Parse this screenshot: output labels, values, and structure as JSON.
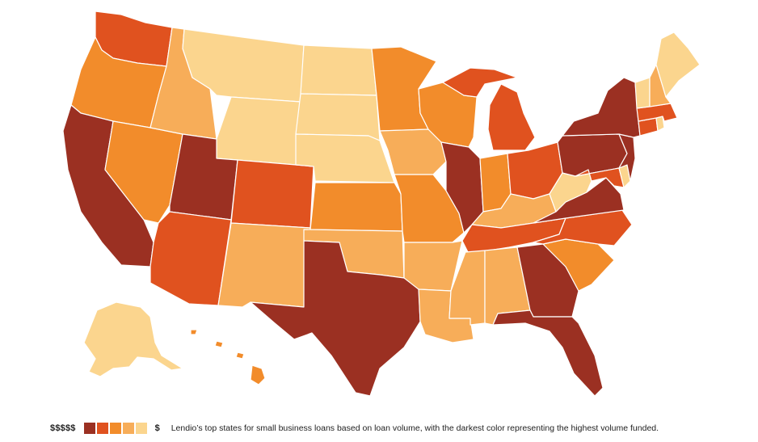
{
  "legend": {
    "high_label": "$$$$$",
    "low_label": "$",
    "caption": "Lendio’s top states for small business loans based on loan volume, with the darkest color representing the highest volume funded.",
    "scale_colors": [
      "#9b3022",
      "#e0521f",
      "#f28c2b",
      "#f7ad59",
      "#fbd58e"
    ]
  },
  "map": {
    "tiers": [
      {
        "tier": 1,
        "color": "#9b3022",
        "states": [
          "California",
          "Utah",
          "Texas",
          "Illinois",
          "Georgia",
          "Florida",
          "Virginia",
          "Pennsylvania",
          "New York",
          "New Jersey"
        ]
      },
      {
        "tier": 2,
        "color": "#e0521f",
        "states": [
          "Washington",
          "Arizona",
          "Colorado",
          "Michigan",
          "Ohio",
          "Tennessee",
          "North Carolina",
          "Connecticut",
          "Massachusetts",
          "Maryland"
        ]
      },
      {
        "tier": 3,
        "color": "#f28c2b",
        "states": [
          "Oregon",
          "Nevada",
          "Minnesota",
          "Wisconsin",
          "Kansas",
          "Missouri",
          "Indiana",
          "South Carolina",
          "Hawaii"
        ]
      },
      {
        "tier": 4,
        "color": "#f7ad59",
        "states": [
          "Idaho",
          "New Mexico",
          "Oklahoma",
          "Iowa",
          "Arkansas",
          "Louisiana",
          "Mississippi",
          "Alabama",
          "Kentucky",
          "New Hampshire"
        ]
      },
      {
        "tier": 5,
        "color": "#fbd58e",
        "states": [
          "Montana",
          "Wyoming",
          "North Dakota",
          "South Dakota",
          "Nebraska",
          "West Virginia",
          "Vermont",
          "Maine",
          "Alaska",
          "Delaware",
          "Rhode Island"
        ]
      }
    ]
  }
}
